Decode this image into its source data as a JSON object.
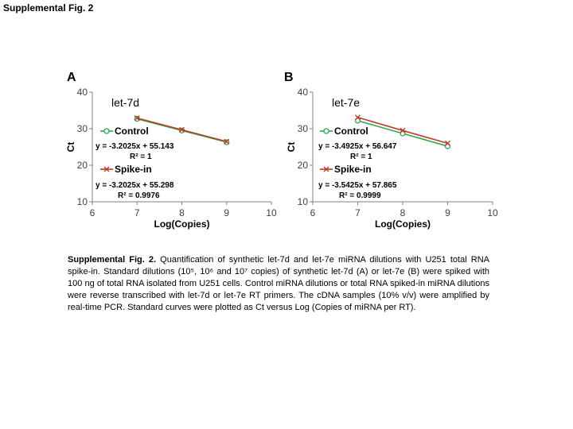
{
  "page_title": "Supplemental Fig. 2",
  "caption": {
    "lead": "Supplemental Fig. 2.",
    "body": " Quantification of synthetic let-7d and let-7e miRNA dilutions with U251 total RNA spike-in. Standard dilutions (10⁵, 10⁶ and 10⁷ copies) of synthetic let-7d (A) or let-7e (B) were spiked with 100 ng of total RNA isolated from U251 cells. Control miRNA dilutions or total RNA spiked-in miRNA dilutions were reverse transcribed with let-7d or let-7e RT primers. The cDNA samples (10% v/v) were amplified by real-time PCR. Standard curves were plotted as Ct versus Log (Copies of miRNA per RT)."
  },
  "colors": {
    "control": "#2fa84f",
    "spike": "#c0392b",
    "axis": "#808080"
  },
  "chart_data": [
    {
      "type": "line",
      "panel": "A",
      "title": "let-7d",
      "xlabel": "Log(Copies)",
      "ylabel": "Ct",
      "xlim": [
        6,
        10
      ],
      "ylim": [
        10,
        40
      ],
      "xticks": [
        "6",
        "7",
        "8",
        "9",
        "10"
      ],
      "yticks": [
        "10",
        "20",
        "30",
        "40"
      ],
      "grid": false,
      "series": [
        {
          "name": "Control",
          "marker": "circle",
          "x": [
            7,
            8,
            9
          ],
          "y": [
            32.7,
            29.5,
            26.3
          ],
          "equation": "y = -3.2025x + 55.143",
          "r2": "R² = 1"
        },
        {
          "name": "Spike-in",
          "marker": "x",
          "x": [
            7,
            8,
            9
          ],
          "y": [
            32.9,
            29.7,
            26.5
          ],
          "equation": "y = -3.2025x + 55.298",
          "r2": "R² = 0.9976"
        }
      ]
    },
    {
      "type": "line",
      "panel": "B",
      "title": "let-7e",
      "xlabel": "Log(Copies)",
      "ylabel": "Ct",
      "xlim": [
        6,
        10
      ],
      "ylim": [
        10,
        40
      ],
      "xticks": [
        "6",
        "7",
        "8",
        "9",
        "10"
      ],
      "yticks": [
        "10",
        "20",
        "30",
        "40"
      ],
      "grid": false,
      "series": [
        {
          "name": "Control",
          "marker": "circle",
          "x": [
            7,
            8,
            9
          ],
          "y": [
            32.2,
            28.7,
            25.2
          ],
          "equation": "y = -3.4925x + 56.647",
          "r2": "R² = 1"
        },
        {
          "name": "Spike-in",
          "marker": "x",
          "x": [
            7,
            8,
            9
          ],
          "y": [
            33.1,
            29.5,
            26.0
          ],
          "equation": "y = -3.5425x + 57.865",
          "r2": "R² = 0.9999"
        }
      ]
    }
  ]
}
